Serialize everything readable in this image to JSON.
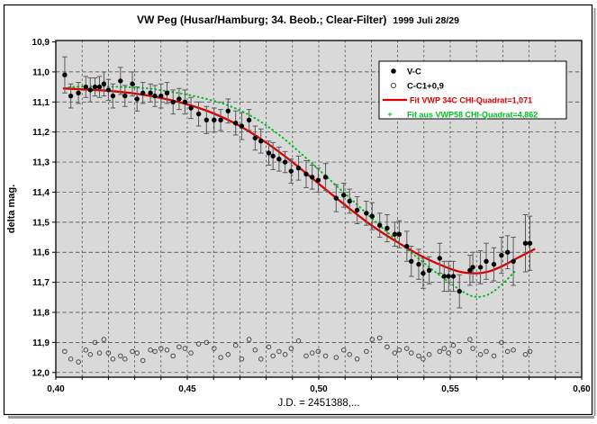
{
  "title": {
    "main": "VW Peg (Husar/Hamburg; 34. Beob.; Clear-Filter)",
    "date": "1999 Juli 28/29"
  },
  "colors": {
    "plot_bg": "#d9d9d9",
    "frame": "#000000",
    "shadow": "#9a9a9a",
    "grid": "#3c3c3c",
    "point_black": "#000000",
    "error_bar": "#5a5a5a",
    "comp_circle": "#4d4d4d",
    "fit_red": "#dd0000",
    "fit_green": "#00c022"
  },
  "chart_data": {
    "type": "scatter",
    "title": "VW Peg (Husar/Hamburg; 34. Beob.; Clear-Filter) 1999 Juli 28/29",
    "xlabel": "J.D. = 2451388,...",
    "ylabel": "delta mag.",
    "xlim": [
      0.4,
      0.6
    ],
    "ylim": [
      10.9,
      12.0
    ],
    "y_inverted": true,
    "grid": true,
    "x_minor_step": 0.01,
    "x_ticks": {
      "values": [
        0.4,
        0.45,
        0.5,
        0.55,
        0.6
      ],
      "labels": [
        "0,40",
        "0,45",
        "0,50",
        "0,55",
        "0,60"
      ]
    },
    "y_ticks": {
      "values": [
        10.9,
        11.0,
        11.1,
        11.2,
        11.3,
        11.4,
        11.5,
        11.6,
        11.7,
        11.8,
        11.9,
        12.0
      ],
      "labels": [
        "10,9",
        "11,0",
        "11,1",
        "11,2",
        "11,3",
        "11,4",
        "11,5",
        "11,6",
        "11,7",
        "11,8",
        "11,9",
        "12,0"
      ]
    },
    "legend": {
      "position": "top-right",
      "items": [
        {
          "label": "V-C",
          "marker": "filled-circle",
          "color": "#000000"
        },
        {
          "label": "C-C1+0,9",
          "marker": "open-circle",
          "color": "#4d4d4d"
        },
        {
          "label": "Fit VWP 34C   CHI-Quadrat=1,071",
          "marker": "line",
          "color": "#dd0000"
        },
        {
          "label": "Fit aus VWP58   CHI-Quadrat=4,862",
          "marker": "dotted",
          "color": "#00c022"
        }
      ]
    },
    "series": [
      {
        "name": "V-C",
        "marker": "filled-circle",
        "has_error_bars": true,
        "points_xye": [
          [
            0.4034,
            11.01,
            0.06
          ],
          [
            0.4057,
            11.08,
            0.04
          ],
          [
            0.4086,
            11.07,
            0.035
          ],
          [
            0.4114,
            11.05,
            0.035
          ],
          [
            0.4131,
            11.06,
            0.04
          ],
          [
            0.4149,
            11.05,
            0.03
          ],
          [
            0.4166,
            11.05,
            0.035
          ],
          [
            0.4183,
            11.04,
            0.04
          ],
          [
            0.42,
            11.06,
            0.035
          ],
          [
            0.4217,
            11.08,
            0.04
          ],
          [
            0.4246,
            11.03,
            0.045
          ],
          [
            0.4263,
            11.08,
            0.035
          ],
          [
            0.4291,
            11.04,
            0.04
          ],
          [
            0.4309,
            11.09,
            0.04
          ],
          [
            0.4331,
            11.07,
            0.035
          ],
          [
            0.436,
            11.07,
            0.03
          ],
          [
            0.4377,
            11.08,
            0.035
          ],
          [
            0.44,
            11.08,
            0.04
          ],
          [
            0.4423,
            11.07,
            0.035
          ],
          [
            0.4446,
            11.1,
            0.04
          ],
          [
            0.4469,
            11.09,
            0.035
          ],
          [
            0.4491,
            11.1,
            0.04
          ],
          [
            0.4514,
            11.12,
            0.035
          ],
          [
            0.4543,
            11.14,
            0.04
          ],
          [
            0.4573,
            11.16,
            0.045
          ],
          [
            0.4602,
            11.16,
            0.04
          ],
          [
            0.4627,
            11.16,
            0.035
          ],
          [
            0.4655,
            11.13,
            0.04
          ],
          [
            0.4684,
            11.17,
            0.04
          ],
          [
            0.4707,
            11.18,
            0.045
          ],
          [
            0.4735,
            11.16,
            0.035
          ],
          [
            0.4758,
            11.22,
            0.04
          ],
          [
            0.478,
            11.23,
            0.04
          ],
          [
            0.481,
            11.27,
            0.04
          ],
          [
            0.4826,
            11.28,
            0.045
          ],
          [
            0.4849,
            11.29,
            0.04
          ],
          [
            0.4872,
            11.3,
            0.035
          ],
          [
            0.4895,
            11.33,
            0.04
          ],
          [
            0.4923,
            11.32,
            0.04
          ],
          [
            0.4952,
            11.34,
            0.045
          ],
          [
            0.4975,
            11.35,
            0.04
          ],
          [
            0.4998,
            11.36,
            0.04
          ],
          [
            0.5026,
            11.35,
            0.045
          ],
          [
            0.5066,
            11.42,
            0.045
          ],
          [
            0.5095,
            11.41,
            0.04
          ],
          [
            0.5117,
            11.43,
            0.04
          ],
          [
            0.5146,
            11.46,
            0.045
          ],
          [
            0.5181,
            11.47,
            0.04
          ],
          [
            0.5203,
            11.48,
            0.045
          ],
          [
            0.5232,
            11.51,
            0.04
          ],
          [
            0.526,
            11.52,
            0.045
          ],
          [
            0.5289,
            11.54,
            0.04
          ],
          [
            0.5306,
            11.54,
            0.045
          ],
          [
            0.5335,
            11.58,
            0.05
          ],
          [
            0.5352,
            11.63,
            0.05
          ],
          [
            0.538,
            11.64,
            0.05
          ],
          [
            0.5397,
            11.67,
            0.05
          ],
          [
            0.542,
            11.66,
            0.045
          ],
          [
            0.546,
            11.62,
            0.05
          ],
          [
            0.5477,
            11.68,
            0.05
          ],
          [
            0.5494,
            11.68,
            0.05
          ],
          [
            0.5512,
            11.68,
            0.05
          ],
          [
            0.5535,
            11.73,
            0.055
          ],
          [
            0.5575,
            11.66,
            0.05
          ],
          [
            0.5586,
            11.65,
            0.05
          ],
          [
            0.5615,
            11.65,
            0.055
          ],
          [
            0.5637,
            11.63,
            0.06
          ],
          [
            0.5666,
            11.64,
            0.055
          ],
          [
            0.5695,
            11.61,
            0.06
          ],
          [
            0.5718,
            11.6,
            0.055
          ],
          [
            0.574,
            11.63,
            0.08
          ],
          [
            0.5786,
            11.57,
            0.095
          ],
          [
            0.5803,
            11.57,
            0.09
          ]
        ]
      },
      {
        "name": "C-C1+0,9",
        "marker": "open-circle",
        "points": [
          [
            0.4034,
            11.93
          ],
          [
            0.4057,
            11.955
          ],
          [
            0.4086,
            11.965
          ],
          [
            0.4114,
            11.925
          ],
          [
            0.4131,
            11.94
          ],
          [
            0.4149,
            11.9
          ],
          [
            0.4166,
            11.935
          ],
          [
            0.4183,
            11.89
          ],
          [
            0.42,
            11.935
          ],
          [
            0.4217,
            11.955
          ],
          [
            0.4246,
            11.945
          ],
          [
            0.4263,
            11.955
          ],
          [
            0.4291,
            11.93
          ],
          [
            0.4309,
            11.935
          ],
          [
            0.4331,
            11.96
          ],
          [
            0.436,
            11.925
          ],
          [
            0.4377,
            11.93
          ],
          [
            0.44,
            11.92
          ],
          [
            0.4423,
            11.925
          ],
          [
            0.4446,
            11.945
          ],
          [
            0.4469,
            11.915
          ],
          [
            0.4491,
            11.92
          ],
          [
            0.4514,
            11.935
          ],
          [
            0.4543,
            11.905
          ],
          [
            0.4573,
            11.9
          ],
          [
            0.4602,
            11.92
          ],
          [
            0.4627,
            11.95
          ],
          [
            0.4655,
            11.94
          ],
          [
            0.4684,
            11.91
          ],
          [
            0.4707,
            11.955
          ],
          [
            0.4735,
            11.89
          ],
          [
            0.4758,
            11.925
          ],
          [
            0.478,
            11.955
          ],
          [
            0.481,
            11.915
          ],
          [
            0.4826,
            11.945
          ],
          [
            0.4849,
            11.93
          ],
          [
            0.4872,
            11.94
          ],
          [
            0.4895,
            11.92
          ],
          [
            0.4923,
            11.895
          ],
          [
            0.4952,
            11.945
          ],
          [
            0.4975,
            11.935
          ],
          [
            0.4998,
            11.93
          ],
          [
            0.5026,
            11.945
          ],
          [
            0.5066,
            11.95
          ],
          [
            0.5095,
            11.925
          ],
          [
            0.5117,
            11.94
          ],
          [
            0.5146,
            11.955
          ],
          [
            0.5181,
            11.93
          ],
          [
            0.5203,
            11.89
          ],
          [
            0.5232,
            11.885
          ],
          [
            0.526,
            11.915
          ],
          [
            0.5289,
            11.935
          ],
          [
            0.5306,
            11.925
          ],
          [
            0.5335,
            11.92
          ],
          [
            0.5352,
            11.935
          ],
          [
            0.538,
            11.945
          ],
          [
            0.5397,
            11.955
          ],
          [
            0.542,
            11.94
          ],
          [
            0.546,
            11.93
          ],
          [
            0.5477,
            11.92
          ],
          [
            0.5494,
            11.935
          ],
          [
            0.5512,
            11.91
          ],
          [
            0.5535,
            11.93
          ],
          [
            0.5575,
            11.89
          ],
          [
            0.5586,
            11.92
          ],
          [
            0.5615,
            11.94
          ],
          [
            0.5637,
            11.93
          ],
          [
            0.5666,
            11.945
          ],
          [
            0.5695,
            11.9
          ],
          [
            0.5718,
            11.93
          ],
          [
            0.574,
            11.925
          ],
          [
            0.5786,
            11.94
          ],
          [
            0.5803,
            11.93
          ]
        ]
      },
      {
        "name": "Fit VWP 34C",
        "label": "Fit VWP 34C   CHI-Quadrat=1,071",
        "style": "line",
        "color": "#dd0000",
        "points": [
          [
            0.403,
            11.055
          ],
          [
            0.41,
            11.058
          ],
          [
            0.42,
            11.063
          ],
          [
            0.43,
            11.072
          ],
          [
            0.44,
            11.087
          ],
          [
            0.45,
            11.108
          ],
          [
            0.46,
            11.138
          ],
          [
            0.47,
            11.18
          ],
          [
            0.48,
            11.235
          ],
          [
            0.49,
            11.3
          ],
          [
            0.5,
            11.372
          ],
          [
            0.51,
            11.443
          ],
          [
            0.52,
            11.51
          ],
          [
            0.53,
            11.567
          ],
          [
            0.54,
            11.617
          ],
          [
            0.55,
            11.655
          ],
          [
            0.555,
            11.667
          ],
          [
            0.56,
            11.67
          ],
          [
            0.565,
            11.663
          ],
          [
            0.57,
            11.645
          ],
          [
            0.576,
            11.617
          ],
          [
            0.582,
            11.59
          ]
        ]
      },
      {
        "name": "Fit aus VWP58",
        "label": "Fit aus VWP58   CHI-Quadrat=4,862",
        "style": "dotted",
        "color": "#00c022",
        "points": [
          [
            0.405,
            11.05
          ],
          [
            0.415,
            11.048
          ],
          [
            0.425,
            11.05
          ],
          [
            0.435,
            11.055
          ],
          [
            0.445,
            11.068
          ],
          [
            0.455,
            11.085
          ],
          [
            0.465,
            11.11
          ],
          [
            0.475,
            11.15
          ],
          [
            0.485,
            11.21
          ],
          [
            0.495,
            11.285
          ],
          [
            0.505,
            11.365
          ],
          [
            0.515,
            11.445
          ],
          [
            0.525,
            11.525
          ],
          [
            0.535,
            11.6
          ],
          [
            0.545,
            11.67
          ],
          [
            0.552,
            11.715
          ],
          [
            0.558,
            11.745
          ],
          [
            0.563,
            11.745
          ],
          [
            0.568,
            11.72
          ],
          [
            0.575,
            11.66
          ]
        ]
      }
    ]
  }
}
